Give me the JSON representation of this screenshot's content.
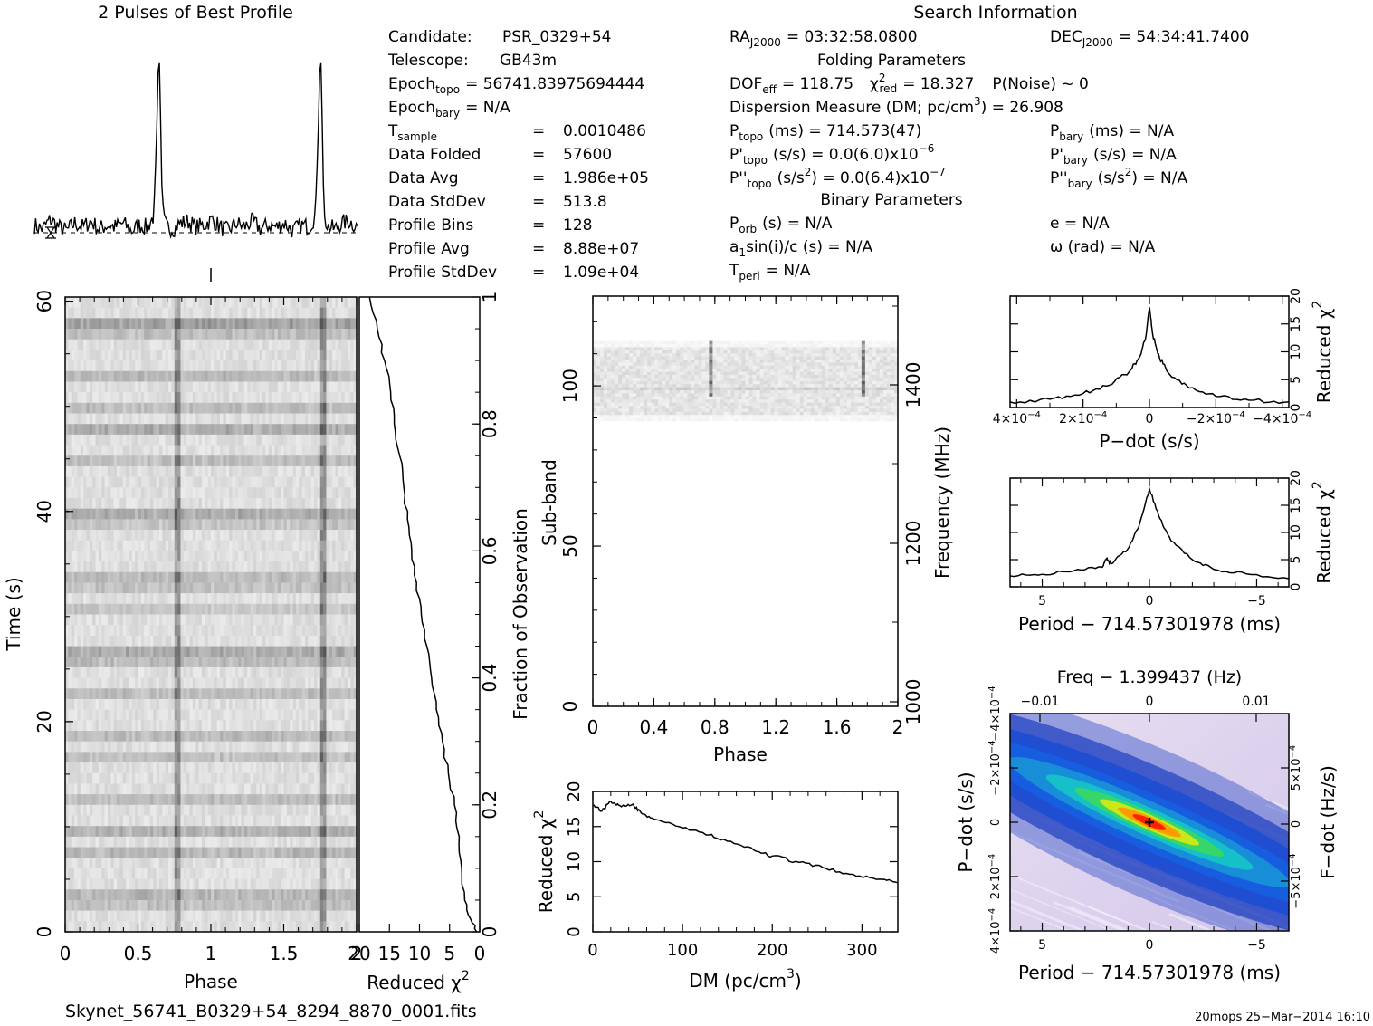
{
  "profile": {
    "title": "2 Pulses of Best Profile"
  },
  "header": {
    "title": "Search Information",
    "folding_title": "Folding Parameters",
    "binary_title": "Binary Parameters",
    "candidate_label": "Candidate:",
    "candidate": "PSR_0329+54",
    "telescope_label": "Telescope:",
    "telescope": "GB43m",
    "epoch_topo_label": "Epoch",
    "epoch_topo_sub": "topo",
    "epoch_topo": "= 56741.83975694444",
    "epoch_bary_label": "Epoch",
    "epoch_bary_sub": "bary",
    "epoch_bary": "= N/A",
    "rows": [
      {
        "label": "T",
        "sub": "sample",
        "eq": "=",
        "value": "0.0010486"
      },
      {
        "label": "Data Folded",
        "sub": "",
        "eq": "=",
        "value": "57600"
      },
      {
        "label": "Data Avg",
        "sub": "",
        "eq": "=",
        "value": "1.986e+05"
      },
      {
        "label": "Data StdDev",
        "sub": "",
        "eq": "=",
        "value": "513.8"
      },
      {
        "label": "Profile Bins",
        "sub": "",
        "eq": "=",
        "value": "128"
      },
      {
        "label": "Profile Avg",
        "sub": "",
        "eq": "=",
        "value": "8.88e+07"
      },
      {
        "label": "Profile StdDev",
        "sub": "",
        "eq": "=",
        "value": "1.09e+04"
      }
    ],
    "ra_label": "RA",
    "ra_sub": "J2000",
    "ra": "= 03:32:58.0800",
    "dec_label": "DEC",
    "dec_sub": "J2000",
    "dec": "= 54:34:41.7400",
    "dof_label": "DOF",
    "dof_sub": "eff",
    "dof": "= 118.75",
    "chi_label": "χ",
    "chi_sup": "2",
    "chi_sub": "red",
    "chi": "= 18.327",
    "pnoise": "P(Noise) ~ 0",
    "dm_text": "Dispersion Measure (DM; pc/cm",
    "dm_sup": "3",
    "dm_value": ") = 26.908",
    "ptopo_label": "P",
    "ptopo_sub": "topo",
    "ptopo": "(ms) =  714.573(47)",
    "pdtopo_label": "P'",
    "pdtopo_sub": "topo",
    "pdtopo": "(s/s) = 0.0(6.0)x10",
    "pdtopo_exp": "−6",
    "pddtopo_label": "P''",
    "pddtopo_sub": "topo",
    "pddtopo": "(s/s",
    "pddtopo_sup": "2",
    "pddtopo_val": ") = 0.0(6.4)x10",
    "pddtopo_exp": "−7",
    "pbary_label": "P",
    "pbary_sub": "bary",
    "pbary": "(ms) = N/A",
    "pdbary_label": "P'",
    "pdbary_sub": "bary",
    "pdbary": "(s/s) = N/A",
    "pddbary_label": "P''",
    "pddbary_sub": "bary",
    "pddbary": "(s/s",
    "pddbary_sup": "2",
    "pddbary_val": ") = N/A",
    "porb_label": "P",
    "porb_sub": "orb",
    "porb": "(s) = N/A",
    "a1_label": "a",
    "a1_sub": "1",
    "a1": "sin(i)/c (s) = N/A",
    "tperi_label": "T",
    "tperi_sub": "peri",
    "tperi": "= N/A",
    "e": "e = N/A",
    "omega": "ω (rad) = N/A"
  },
  "footer": {
    "filename": "Skynet_56741_B0329+54_8294_8870_0001.fits",
    "stamp": "20mops 25−Mar−2014 16:10"
  },
  "chart_data": [
    {
      "id": "profile",
      "type": "line",
      "title": "2 Pulses of Best Profile",
      "x": [
        0,
        0.05,
        0.1,
        0.15,
        0.2,
        0.25,
        0.3,
        0.35,
        0.4,
        0.45,
        0.5,
        0.55,
        0.6,
        0.65,
        0.7,
        0.74,
        0.76,
        0.77,
        0.78,
        0.79,
        0.8,
        0.82,
        0.86,
        0.9,
        0.95,
        1.0,
        1.05,
        1.1,
        1.15,
        1.2,
        1.25,
        1.3,
        1.35,
        1.4,
        1.45,
        1.5,
        1.55,
        1.6,
        1.65,
        1.7,
        1.74,
        1.76,
        1.77,
        1.78,
        1.79,
        1.8,
        1.82,
        1.86,
        1.9,
        1.95,
        2.0
      ],
      "y": [
        0.03,
        0.01,
        0.06,
        0.02,
        0.0,
        0.04,
        0.02,
        0.05,
        0.01,
        0.03,
        0.02,
        0.04,
        0.0,
        0.03,
        0.02,
        0.08,
        0.6,
        1.0,
        0.62,
        0.2,
        0.06,
        0.02,
        0.01,
        0.04,
        0.05,
        0.02,
        0.03,
        0.06,
        0.02,
        0.0,
        0.04,
        0.02,
        0.05,
        0.01,
        0.03,
        0.02,
        0.04,
        0.0,
        0.03,
        0.02,
        0.08,
        0.6,
        1.0,
        0.62,
        0.2,
        0.06,
        0.02,
        0.01,
        0.04,
        0.05,
        0.02
      ],
      "xlim": [
        0,
        2
      ]
    },
    {
      "id": "time_phase",
      "type": "heatmap",
      "xlabel": "Phase",
      "ylabel": "Time (s)",
      "xlim": [
        0,
        2
      ],
      "ylim": [
        0,
        60.4
      ],
      "x_ticks": [
        "0",
        "0.5",
        "1",
        "1.5",
        "2"
      ],
      "y_ticks": [
        "0",
        "20",
        "40",
        "60"
      ],
      "pulse_phases": [
        0.77,
        1.77
      ]
    },
    {
      "id": "time_chi2",
      "type": "line",
      "xlabel": "Reduced χ",
      "xlabel_sup": "2",
      "ylabel": "Fraction of Observation",
      "xlim": [
        20,
        0
      ],
      "ylim": [
        0,
        1
      ],
      "x_ticks": [
        "20",
        "15",
        "10",
        "5",
        "0"
      ],
      "y_ticks": [
        "0",
        "0.2",
        "0.4",
        "0.6",
        "0.8",
        "1"
      ],
      "points": [
        [
          0.5,
          0.0
        ],
        [
          1.5,
          0.02
        ],
        [
          2.5,
          0.05
        ],
        [
          3.0,
          0.1
        ],
        [
          3.4,
          0.15
        ],
        [
          4.2,
          0.2
        ],
        [
          5.2,
          0.25
        ],
        [
          6.2,
          0.3
        ],
        [
          7.2,
          0.35
        ],
        [
          8.0,
          0.4
        ],
        [
          8.8,
          0.45
        ],
        [
          9.7,
          0.5
        ],
        [
          10.5,
          0.55
        ],
        [
          11.3,
          0.6
        ],
        [
          12.0,
          0.65
        ],
        [
          12.6,
          0.7
        ],
        [
          13.3,
          0.75
        ],
        [
          14.2,
          0.8
        ],
        [
          14.8,
          0.85
        ],
        [
          15.8,
          0.9
        ],
        [
          17.0,
          0.95
        ],
        [
          18.3,
          1.0
        ]
      ]
    },
    {
      "id": "subband_phase",
      "type": "heatmap",
      "xlabel": "Phase",
      "ylabel": "Sub-band",
      "y2label": "Frequency (MHz)",
      "xlim": [
        0,
        2
      ],
      "ylim": [
        0,
        128
      ],
      "x_ticks": [
        "0",
        "0.4",
        "0.8",
        "1.2",
        "1.6",
        "2"
      ],
      "y_ticks": [
        "0",
        "50",
        "100"
      ],
      "y2_ticks": [
        "1000",
        "1200",
        "1400"
      ],
      "occupied_subbands": [
        89,
        114
      ],
      "pulse_phases": [
        0.77,
        1.77
      ]
    },
    {
      "id": "dm_chi2",
      "type": "line",
      "xlabel": "DM (pc/cm",
      "xlabel_sup": "3",
      "xlabel_end": ")",
      "ylabel": "Reduced χ",
      "ylabel_sup": "2",
      "xlim": [
        0,
        340
      ],
      "ylim": [
        0,
        20
      ],
      "x_ticks": [
        "0",
        "100",
        "200",
        "300"
      ],
      "y_ticks": [
        "0",
        "5",
        "10",
        "15",
        "20"
      ],
      "points": [
        [
          0,
          18.0
        ],
        [
          10,
          17.2
        ],
        [
          20,
          18.6
        ],
        [
          30,
          18.0
        ],
        [
          45,
          18.2
        ],
        [
          55,
          16.8
        ],
        [
          70,
          16.0
        ],
        [
          100,
          14.8
        ],
        [
          130,
          13.8
        ],
        [
          150,
          12.9
        ],
        [
          180,
          11.6
        ],
        [
          200,
          10.8
        ],
        [
          230,
          9.9
        ],
        [
          260,
          9.0
        ],
        [
          290,
          8.2
        ],
        [
          320,
          7.5
        ],
        [
          340,
          7.0
        ]
      ]
    },
    {
      "id": "pdot_chi2",
      "type": "line",
      "xlabel": "P−dot (s/s)",
      "ylabel": "Reduced χ",
      "ylabel_sup": "2",
      "xlim": [
        0.00042,
        -0.00042
      ],
      "ylim": [
        0,
        20
      ],
      "x_ticks": [
        "4×10",
        "2×10",
        "0",
        "−2×10",
        "−4×10"
      ],
      "x_tick_exp": "−4",
      "y_ticks": [
        "0",
        "5",
        "10",
        "15",
        "20"
      ],
      "points": [
        [
          0.00042,
          1.0
        ],
        [
          0.0003,
          1.5
        ],
        [
          0.0002,
          2.5
        ],
        [
          0.00012,
          4.0
        ],
        [
          6e-05,
          6.5
        ],
        [
          3e-05,
          9.0
        ],
        [
          1e-05,
          13.0
        ],
        [
          0,
          18.0
        ],
        [
          -1e-05,
          13.0
        ],
        [
          -3e-05,
          9.0
        ],
        [
          -6e-05,
          6.0
        ],
        [
          -0.00012,
          3.5
        ],
        [
          -0.0002,
          2.0
        ],
        [
          -0.0003,
          1.3
        ],
        [
          -0.00042,
          1.0
        ]
      ]
    },
    {
      "id": "period_chi2",
      "type": "line",
      "xlabel": "Period − 714.57301978 (ms)",
      "ylabel": "Reduced χ",
      "ylabel_sup": "2",
      "xlim": [
        6.5,
        -6.5
      ],
      "ylim": [
        0,
        20
      ],
      "x_ticks": [
        "5",
        "0",
        "−5"
      ],
      "y_ticks": [
        "0",
        "5",
        "10",
        "15",
        "20"
      ],
      "points": [
        [
          6.5,
          2.0
        ],
        [
          5,
          2.3
        ],
        [
          3.5,
          3.0
        ],
        [
          2.2,
          3.6
        ],
        [
          2.0,
          5.2
        ],
        [
          1.8,
          4.2
        ],
        [
          1.0,
          7.0
        ],
        [
          0.5,
          11.0
        ],
        [
          0,
          18.0
        ],
        [
          -0.5,
          12.5
        ],
        [
          -1.0,
          8.5
        ],
        [
          -2.0,
          5.0
        ],
        [
          -3.0,
          3.2
        ],
        [
          -4.5,
          2.4
        ],
        [
          -6.5,
          1.5
        ]
      ]
    },
    {
      "id": "period_pdot",
      "type": "heatmap",
      "title": "Freq − 1.399437 (Hz)",
      "xlabel": "Period − 714.57301978 (ms)",
      "ylabel": "P−dot (s/s)",
      "y2label": "F−dot (Hz/s)",
      "xlim": [
        6.5,
        -6.5
      ],
      "x_ticks": [
        "5",
        "0",
        "−5"
      ],
      "top_ticks": [
        "−0.01",
        "0",
        "0.01"
      ],
      "y_ticks": [
        "4×10",
        "2×10",
        "0",
        "−2×10",
        "−4×10"
      ],
      "y_tick_exp": "−4",
      "y2_ticks": [
        "−5×10",
        "0",
        "5×10"
      ],
      "y2_tick_exp": "−4"
    }
  ]
}
